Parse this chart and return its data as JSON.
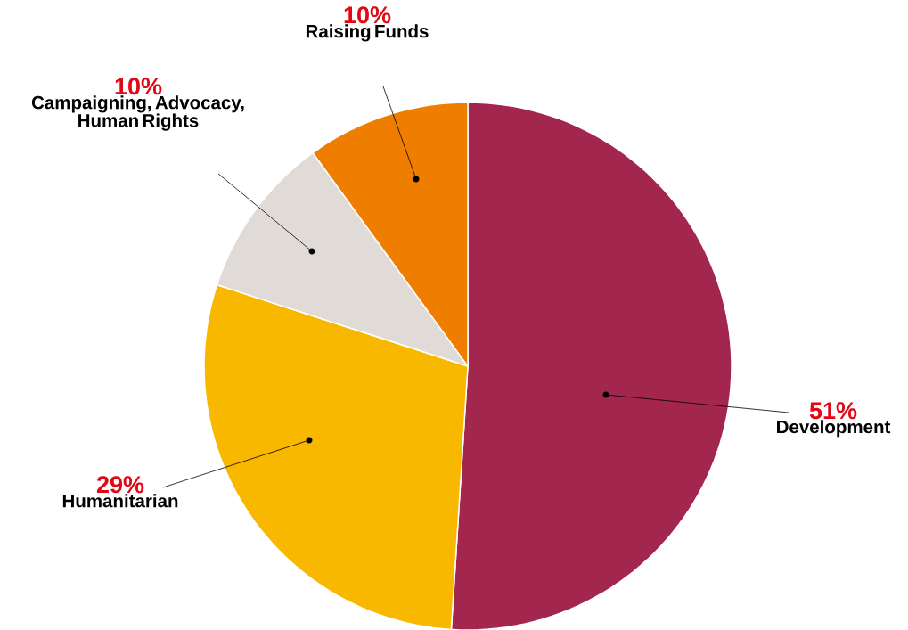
{
  "chart_data": {
    "type": "pie",
    "categories": [
      "Development",
      "Humanitarian",
      "Campaigning, Advocacy, Human Rights",
      "Raising Funds"
    ],
    "values": [
      51,
      29,
      10,
      10
    ],
    "colors": [
      "#a3264f",
      "#f9b800",
      "#e0dbd7",
      "#ef7d00"
    ],
    "value_labels": [
      "51%",
      "29%",
      "10%",
      "10%"
    ]
  }
}
